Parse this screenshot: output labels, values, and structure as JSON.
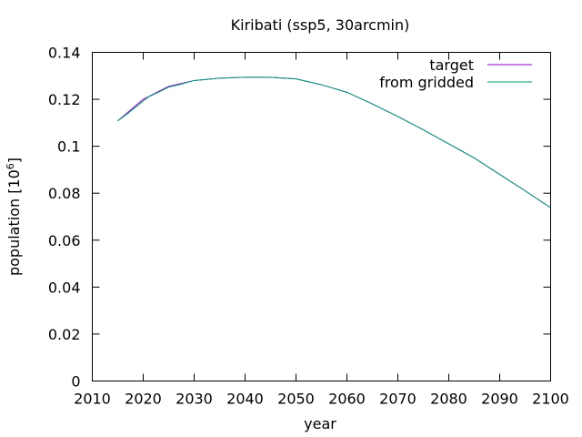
{
  "chart_data": {
    "type": "line",
    "title": "Kiribati (ssp5, 30arcmin)",
    "xlabel": "year",
    "ylabel": "population [10",
    "ylabel_sup": "6",
    "ylabel_close": "]",
    "xlim": [
      2010,
      2100
    ],
    "ylim": [
      0,
      0.14
    ],
    "xticks": [
      "2010",
      "2020",
      "2030",
      "2040",
      "2050",
      "2060",
      "2070",
      "2080",
      "2090",
      "2100"
    ],
    "yticks": [
      "0",
      "0.02",
      "0.04",
      "0.06",
      "0.08",
      "0.1",
      "0.12",
      "0.14"
    ],
    "grid": false,
    "legend_position": "top-right",
    "series": [
      {
        "name": "target",
        "color": "#9400d3",
        "x": [
          2015,
          2020,
          2025,
          2030,
          2035,
          2040,
          2045,
          2050,
          2055,
          2060,
          2065,
          2070,
          2075,
          2080,
          2085,
          2090,
          2095,
          2100
        ],
        "values": [
          0.1108,
          0.12,
          0.1255,
          0.128,
          0.129,
          0.1294,
          0.1294,
          0.1287,
          0.1262,
          0.123,
          0.118,
          0.1127,
          0.107,
          0.101,
          0.095,
          0.088,
          0.081,
          0.0738
        ]
      },
      {
        "name": "from gridded",
        "color": "#009e73",
        "x": [
          2015,
          2017,
          2019,
          2021,
          2023,
          2025,
          2027,
          2030,
          2035,
          2040,
          2045,
          2050,
          2055,
          2060,
          2065,
          2070,
          2075,
          2080,
          2085,
          2090,
          2095,
          2100
        ],
        "values": [
          0.1108,
          0.114,
          0.1175,
          0.121,
          0.123,
          0.1252,
          0.1262,
          0.128,
          0.129,
          0.1294,
          0.1294,
          0.1287,
          0.1262,
          0.123,
          0.118,
          0.1127,
          0.107,
          0.101,
          0.095,
          0.088,
          0.081,
          0.0738
        ]
      }
    ]
  }
}
